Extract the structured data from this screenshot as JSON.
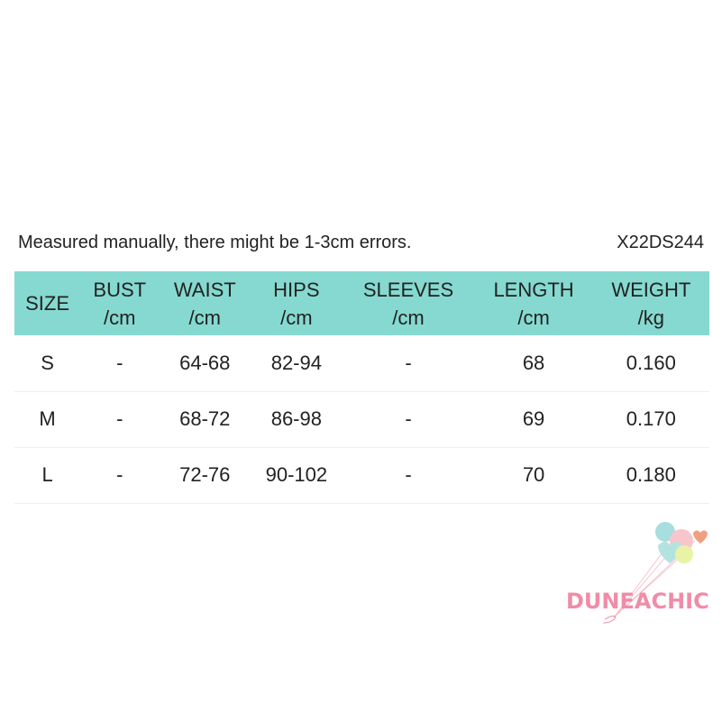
{
  "note": "Measured manually, there might be 1-3cm errors.",
  "code": "X22DS244",
  "headers": [
    [
      "SIZE",
      ""
    ],
    [
      "BUST",
      "/cm"
    ],
    [
      "WAIST",
      "/cm"
    ],
    [
      "HIPS",
      "/cm"
    ],
    [
      "SLEEVES",
      "/cm"
    ],
    [
      "LENGTH",
      "/cm"
    ],
    [
      "WEIGHT",
      "/kg"
    ]
  ],
  "rows": [
    [
      "S",
      "-",
      "64-68",
      "82-94",
      "-",
      "68",
      "0.160"
    ],
    [
      "M",
      "-",
      "68-72",
      "86-98",
      "-",
      "69",
      "0.170"
    ],
    [
      "L",
      "-",
      "72-76",
      "90-102",
      "-",
      "70",
      "0.180"
    ]
  ],
  "watermark": "DUNEACHIC",
  "colors": {
    "header": "#85d9d0",
    "watermark": "#f08ca8"
  }
}
